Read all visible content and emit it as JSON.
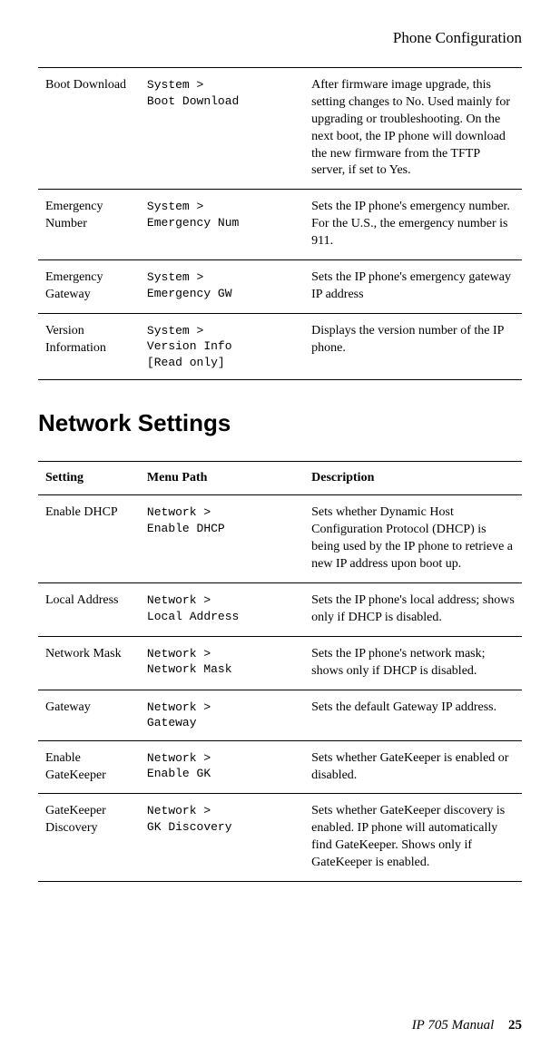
{
  "header": {
    "right": "Phone Configuration"
  },
  "topTable": {
    "rows": [
      {
        "setting": "Boot Download",
        "path": "System >\nBoot Download",
        "desc": "After firmware image upgrade, this setting changes to No. Used mainly for upgrading or troubleshooting. On the next boot, the IP phone will download the new firmware from the TFTP server, if set to Yes."
      },
      {
        "setting": "Emergency Number",
        "path": "System >\nEmergency Num",
        "desc": "Sets the IP phone's emergency number. For the U.S., the emergency number is 911."
      },
      {
        "setting": "Emergency Gateway",
        "path": "System >\nEmergency GW",
        "desc": "Sets the IP phone's emergency gateway IP address"
      },
      {
        "setting": "Version Information",
        "path": "System >\nVersion Info\n[Read only]",
        "desc": "Displays the version number of the IP phone."
      }
    ]
  },
  "sectionTitle": "Network Settings",
  "netTable": {
    "headers": {
      "setting": "Setting",
      "path": "Menu Path",
      "desc": "Description"
    },
    "rows": [
      {
        "setting": "Enable DHCP",
        "path": "Network >\nEnable DHCP",
        "desc": "Sets whether Dynamic Host Configuration Protocol (DHCP) is being used by the IP phone to retrieve a new IP address upon boot up."
      },
      {
        "setting": "Local Address",
        "path": "Network >\nLocal Address",
        "desc": "Sets the IP phone's local address; shows only if DHCP is disabled."
      },
      {
        "setting": "Network Mask",
        "path": "Network >\nNetwork Mask",
        "desc": "Sets the IP phone's network mask; shows only if DHCP is disabled."
      },
      {
        "setting": "Gateway",
        "path": "Network >\nGateway",
        "desc": "Sets the default Gateway IP address."
      },
      {
        "setting": "Enable GateKeeper",
        "path": "Network >\nEnable GK",
        "desc": "Sets whether GateKeeper is enabled or disabled."
      },
      {
        "setting": "GateKeeper Discovery",
        "path": "Network >\nGK Discovery",
        "desc": "Sets whether GateKeeper discovery is enabled. IP phone will automatically find GateKeeper. Shows only if GateKeeper is enabled."
      }
    ]
  },
  "footer": {
    "title": "IP 705 Manual",
    "page": "25"
  }
}
